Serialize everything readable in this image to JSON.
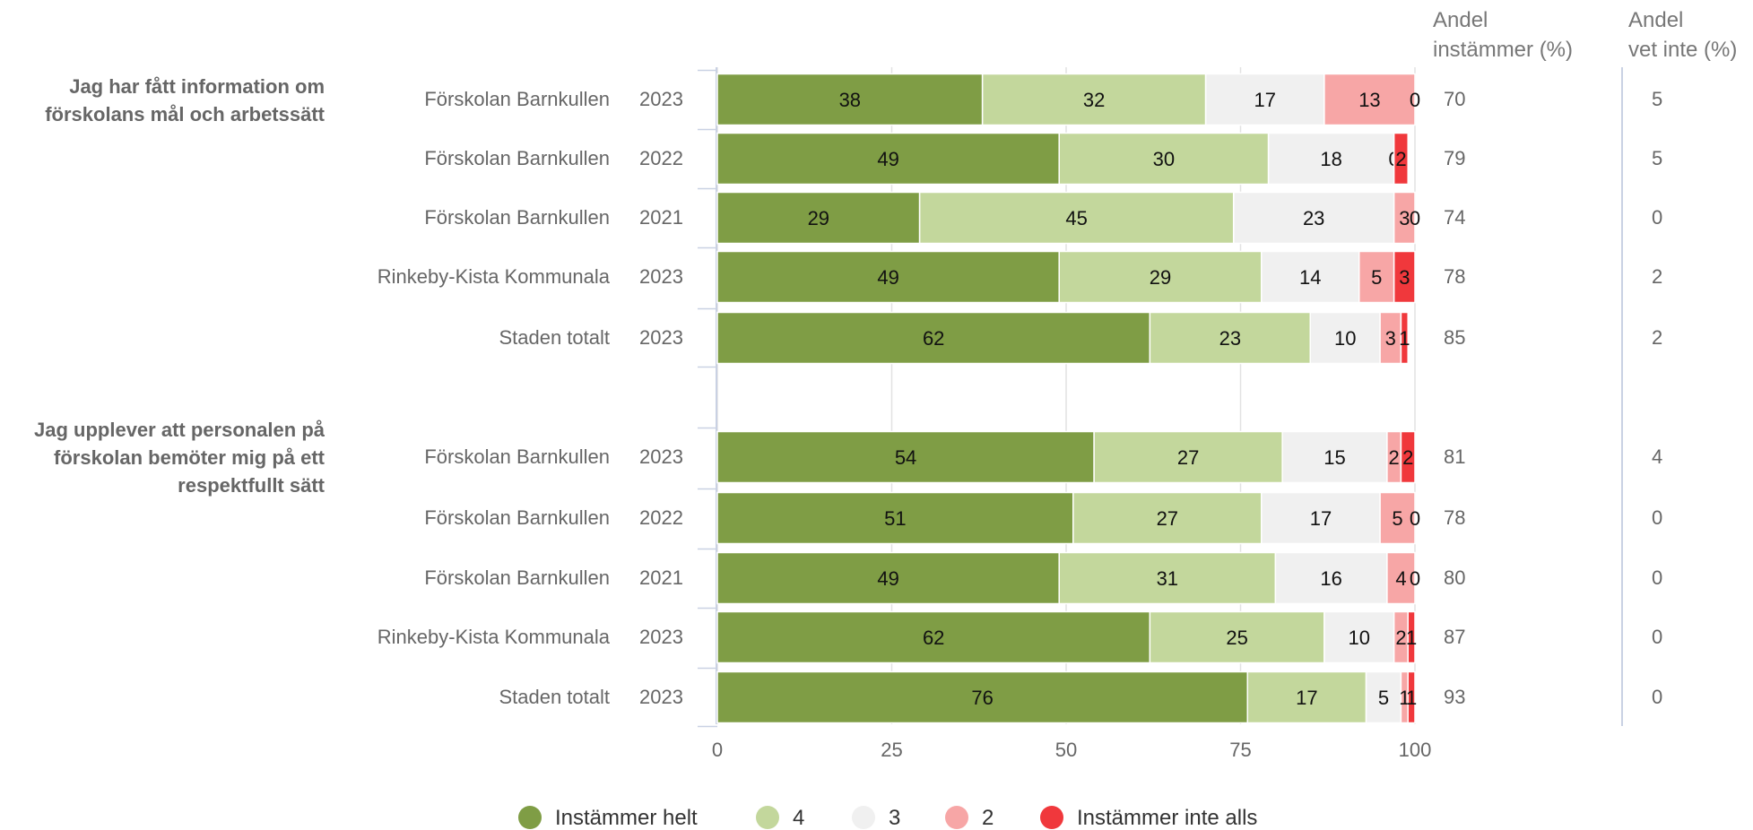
{
  "chart_data": {
    "type": "bar",
    "orientation": "horizontal",
    "stacked": true,
    "xlim": [
      0,
      100
    ],
    "x_ticks": [
      0,
      25,
      50,
      75,
      100
    ],
    "grid": true,
    "legend_position": "bottom",
    "side_headers": {
      "share_agree": [
        "Andel",
        "instämmer (%)"
      ],
      "share_dont_know": [
        "Andel",
        "vet inte (%)"
      ]
    },
    "series": [
      {
        "name": "Instämmer helt",
        "color": "#7f9d45"
      },
      {
        "name": "4",
        "color": "#c3d79c"
      },
      {
        "name": "3",
        "color": "#f0f0f0"
      },
      {
        "name": "2",
        "color": "#f7a6a6"
      },
      {
        "name": "Instämmer inte alls",
        "color": "#f0383c"
      }
    ],
    "groups": [
      {
        "question": [
          "Jag har fått information om",
          "förskolans mål och arbetssätt"
        ],
        "rows": [
          {
            "unit": "Förskolan Barnkullen",
            "year": "2023",
            "values": [
              38,
              32,
              17,
              13,
              0
            ],
            "share_agree": "70",
            "share_dont_know": "5"
          },
          {
            "unit": "Förskolan Barnkullen",
            "year": "2022",
            "values": [
              49,
              30,
              18,
              0,
              2
            ],
            "share_agree": "79",
            "share_dont_know": "5"
          },
          {
            "unit": "Förskolan Barnkullen",
            "year": "2021",
            "values": [
              29,
              45,
              23,
              3,
              0
            ],
            "share_agree": "74",
            "share_dont_know": "0"
          },
          {
            "unit": "Rinkeby-Kista Kommunala",
            "year": "2023",
            "values": [
              49,
              29,
              14,
              5,
              3
            ],
            "share_agree": "78",
            "share_dont_know": "2"
          },
          {
            "unit": "Staden totalt",
            "year": "2023",
            "values": [
              62,
              23,
              10,
              3,
              1
            ],
            "share_agree": "85",
            "share_dont_know": "2"
          }
        ]
      },
      {
        "question": [
          "Jag upplever att personalen på",
          "förskolan bemöter mig på ett",
          "respektfullt sätt"
        ],
        "rows": [
          {
            "unit": "Förskolan Barnkullen",
            "year": "2023",
            "values": [
              54,
              27,
              15,
              2,
              2
            ],
            "share_agree": "81",
            "share_dont_know": "4"
          },
          {
            "unit": "Förskolan Barnkullen",
            "year": "2022",
            "values": [
              51,
              27,
              17,
              5,
              0
            ],
            "share_agree": "78",
            "share_dont_know": "0"
          },
          {
            "unit": "Förskolan Barnkullen",
            "year": "2021",
            "values": [
              49,
              31,
              16,
              4,
              0
            ],
            "share_agree": "80",
            "share_dont_know": "0"
          },
          {
            "unit": "Rinkeby-Kista Kommunala",
            "year": "2023",
            "values": [
              62,
              25,
              10,
              2,
              1
            ],
            "share_agree": "87",
            "share_dont_know": "0"
          },
          {
            "unit": "Staden totalt",
            "year": "2023",
            "values": [
              76,
              17,
              5,
              1,
              1
            ],
            "share_agree": "93",
            "share_dont_know": "0"
          }
        ]
      }
    ]
  }
}
